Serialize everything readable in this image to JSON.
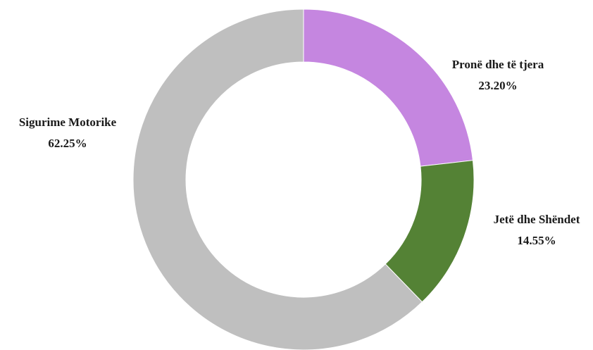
{
  "chart_data": {
    "type": "pie",
    "donut": true,
    "slices": [
      {
        "label": "Pronë dhe të tjera",
        "value_text": "23.20%",
        "value": 23.2,
        "color": "#c586e0"
      },
      {
        "label": "Jetë dhe Shëndet",
        "value_text": "14.55%",
        "value": 14.55,
        "color": "#548235"
      },
      {
        "label": "Sigurime Motorike",
        "value_text": "62.25%",
        "value": 62.25,
        "color": "#bfbfbf"
      }
    ],
    "start_angle_deg": 0,
    "direction": "clockwise",
    "legend": "none",
    "data_labels": "outside"
  }
}
